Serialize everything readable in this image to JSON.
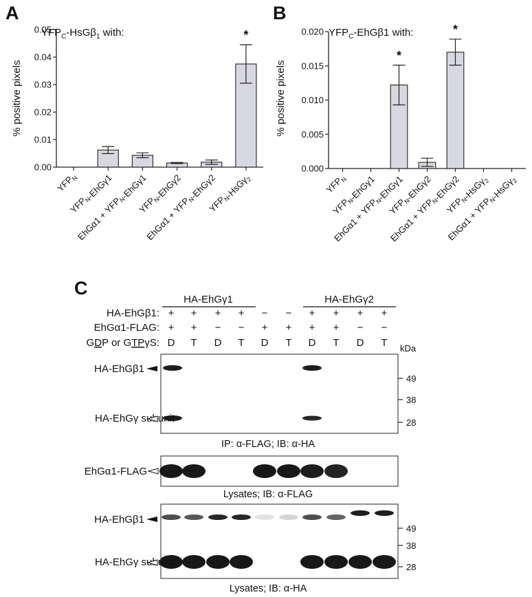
{
  "panel_letters": {
    "a": "A",
    "b": "B",
    "c": "C"
  },
  "chart_data": [
    {
      "type": "bar",
      "panel": "A",
      "title": "YFPC-HsGβ1 with:",
      "ylabel": "% positive pixels",
      "ylim": [
        0,
        0.05
      ],
      "yticks": [
        "0.00",
        "0.01",
        "0.02",
        "0.03",
        "0.04",
        "0.05"
      ],
      "categories": [
        "YFPN",
        "YFPN-EhGγ1",
        "EhGα1 + YFPN-EhGγ1",
        "YFPN-EhGγ2",
        "EhGα1 + YFPN-EhGγ2",
        "YFPN-HsGγ2"
      ],
      "values": [
        0.0,
        0.0062,
        0.0043,
        0.0015,
        0.0018,
        0.0375
      ],
      "errors": [
        0.0,
        0.0013,
        0.0009,
        0.0002,
        0.0008,
        0.007
      ],
      "significance": [
        "",
        "",
        "",
        "",
        "",
        "*"
      ],
      "bar_color": "#d7d8e2"
    },
    {
      "type": "bar",
      "panel": "B",
      "title": "YFPC-EhGβ1 with:",
      "ylabel": "% positive pixels",
      "ylim": [
        0,
        0.02
      ],
      "yticks": [
        "0.000",
        "0.005",
        "0.010",
        "0.015",
        "0.020"
      ],
      "categories": [
        "YFPN",
        "YFPN-EhGγ1",
        "EhGα1 + YFPN-EhGγ1",
        "YFPN-EhGγ2",
        "EhGα1 + YFPN-EhGγ2",
        "YFPN-HsGγ2",
        "EhGα1 + YFPN-HsGγ2"
      ],
      "values": [
        0.0,
        0.0,
        0.0122,
        0.0009,
        0.017,
        0.0,
        0.0
      ],
      "errors": [
        0.0,
        0.0,
        0.0029,
        0.0006,
        0.0019,
        0.0,
        0.0
      ],
      "significance": [
        "",
        "",
        "*",
        "",
        "*",
        "",
        ""
      ],
      "bar_color": "#d7d8e2"
    }
  ],
  "western": {
    "group_labels": [
      "HA-EhGγ1",
      "HA-EhGγ2"
    ],
    "rows": [
      {
        "label": "HA-EhGβ1:",
        "cells": [
          "+",
          "+",
          "+",
          "+",
          "−",
          "−",
          "+",
          "+",
          "+",
          "+"
        ]
      },
      {
        "label": "EhGα1-FLAG:",
        "cells": [
          "+",
          "+",
          "−",
          "−",
          "+",
          "+",
          "+",
          "+",
          "−",
          "−"
        ]
      },
      {
        "label": "GDP or GTPγS:",
        "cells": [
          "D",
          "T",
          "D",
          "T",
          "D",
          "T",
          "D",
          "T",
          "D",
          "T"
        ]
      }
    ],
    "kda_label": "kDa",
    "blots": [
      {
        "left_labels": [
          "HA-EhGβ1",
          "HA-EhGγ subunit"
        ],
        "markers": [
          "49",
          "38",
          "28"
        ],
        "caption": "IP: α-FLAG;  IB: α-HA"
      },
      {
        "left_labels": [
          "EhGα1-FLAG"
        ],
        "markers": [],
        "caption": "Lysates;  IB: α-FLAG"
      },
      {
        "left_labels": [
          "HA-EhGβ1",
          "HA-EhGγ subunit"
        ],
        "markers": [
          "49",
          "38",
          "28"
        ],
        "caption": "Lysates;  IB: α-HA"
      }
    ]
  }
}
